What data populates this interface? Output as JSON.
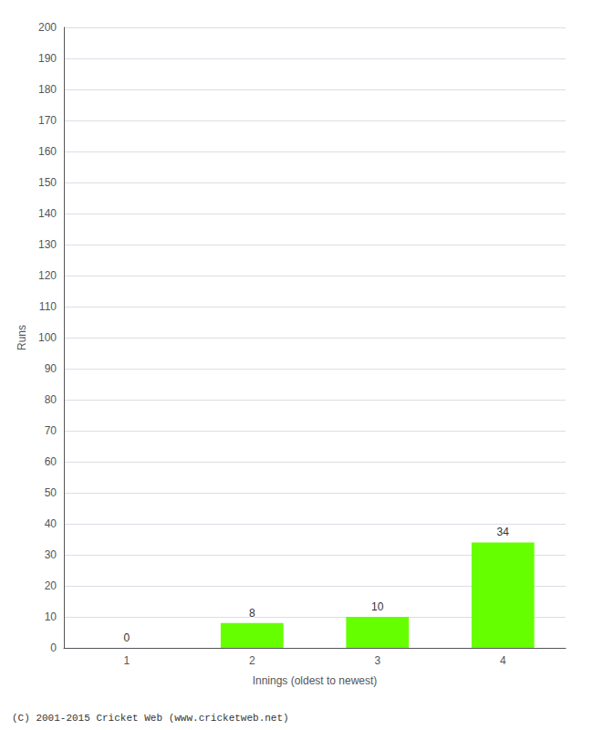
{
  "chart_data": {
    "type": "bar",
    "categories": [
      1,
      2,
      3,
      4
    ],
    "values": [
      0,
      8,
      10,
      34
    ],
    "color": "#66ff00",
    "xlabel": "Innings (oldest to newest)",
    "ylabel": "Runs",
    "ylim": [
      0,
      200
    ],
    "yticks": [
      0,
      10,
      20,
      30,
      40,
      50,
      60,
      70,
      80,
      90,
      100,
      110,
      120,
      130,
      140,
      150,
      160,
      170,
      180,
      190,
      200
    ],
    "grid": true,
    "data_labels": true,
    "annotation": "(C) 2001-2015 Cricket Web (www.cricketweb.net)"
  }
}
